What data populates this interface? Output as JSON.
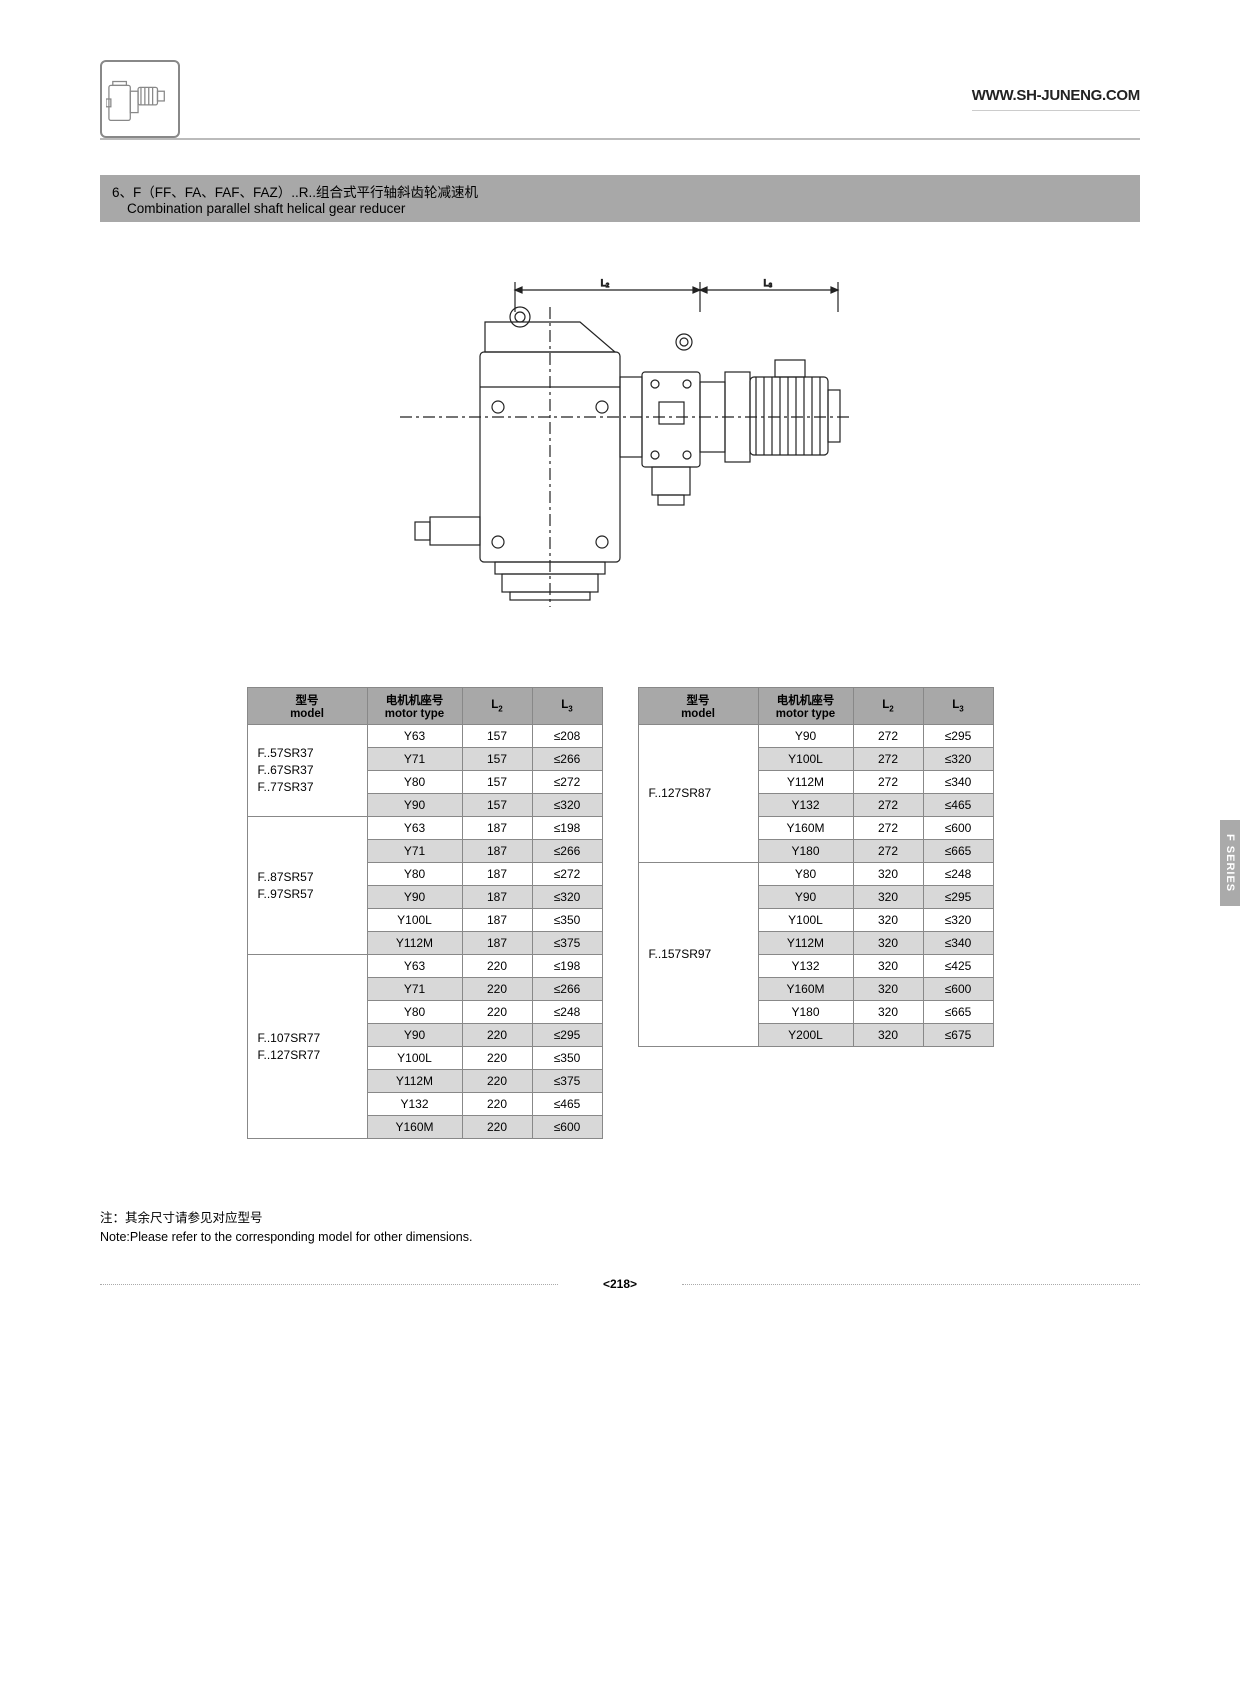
{
  "header": {
    "url": "WWW.SH-JUNENG.COM"
  },
  "title": {
    "cn": "6、F（FF、FA、FAF、FAZ）..R..组合式平行轴斜齿轮减速机",
    "en": "Combination parallel shaft helical gear reducer"
  },
  "diagram": {
    "label_l2": "L₂",
    "label_l3": "L₃"
  },
  "headers": {
    "model_cn": "型号",
    "model_en": "model",
    "motor_cn": "电机机座号",
    "motor_en": "motor type",
    "l2": "L",
    "l2_sub": "2",
    "l3": "L",
    "l3_sub": "3"
  },
  "table_left": [
    {
      "model": "F..57SR37\nF..67SR37\nF..77SR37",
      "rows": [
        {
          "motor": "Y63",
          "l2": "157",
          "l3": "≤208",
          "shade": false
        },
        {
          "motor": "Y71",
          "l2": "157",
          "l3": "≤266",
          "shade": true
        },
        {
          "motor": "Y80",
          "l2": "157",
          "l3": "≤272",
          "shade": false
        },
        {
          "motor": "Y90",
          "l2": "157",
          "l3": "≤320",
          "shade": true
        }
      ]
    },
    {
      "model": "F..87SR57\nF..97SR57",
      "rows": [
        {
          "motor": "Y63",
          "l2": "187",
          "l3": "≤198",
          "shade": false
        },
        {
          "motor": "Y71",
          "l2": "187",
          "l3": "≤266",
          "shade": true
        },
        {
          "motor": "Y80",
          "l2": "187",
          "l3": "≤272",
          "shade": false
        },
        {
          "motor": "Y90",
          "l2": "187",
          "l3": "≤320",
          "shade": true
        },
        {
          "motor": "Y100L",
          "l2": "187",
          "l3": "≤350",
          "shade": false
        },
        {
          "motor": "Y112M",
          "l2": "187",
          "l3": "≤375",
          "shade": true
        }
      ]
    },
    {
      "model": "F..107SR77\nF..127SR77",
      "rows": [
        {
          "motor": "Y63",
          "l2": "220",
          "l3": "≤198",
          "shade": false
        },
        {
          "motor": "Y71",
          "l2": "220",
          "l3": "≤266",
          "shade": true
        },
        {
          "motor": "Y80",
          "l2": "220",
          "l3": "≤248",
          "shade": false
        },
        {
          "motor": "Y90",
          "l2": "220",
          "l3": "≤295",
          "shade": true
        },
        {
          "motor": "Y100L",
          "l2": "220",
          "l3": "≤350",
          "shade": false
        },
        {
          "motor": "Y112M",
          "l2": "220",
          "l3": "≤375",
          "shade": true
        },
        {
          "motor": "Y132",
          "l2": "220",
          "l3": "≤465",
          "shade": false
        },
        {
          "motor": "Y160M",
          "l2": "220",
          "l3": "≤600",
          "shade": true
        }
      ]
    }
  ],
  "table_right": [
    {
      "model": "F..127SR87",
      "rows": [
        {
          "motor": "Y90",
          "l2": "272",
          "l3": "≤295",
          "shade": false
        },
        {
          "motor": "Y100L",
          "l2": "272",
          "l3": "≤320",
          "shade": true
        },
        {
          "motor": "Y112M",
          "l2": "272",
          "l3": "≤340",
          "shade": false
        },
        {
          "motor": "Y132",
          "l2": "272",
          "l3": "≤465",
          "shade": true
        },
        {
          "motor": "Y160M",
          "l2": "272",
          "l3": "≤600",
          "shade": false
        },
        {
          "motor": "Y180",
          "l2": "272",
          "l3": "≤665",
          "shade": true
        }
      ]
    },
    {
      "model": "F..157SR97",
      "rows": [
        {
          "motor": "Y80",
          "l2": "320",
          "l3": "≤248",
          "shade": false
        },
        {
          "motor": "Y90",
          "l2": "320",
          "l3": "≤295",
          "shade": true
        },
        {
          "motor": "Y100L",
          "l2": "320",
          "l3": "≤320",
          "shade": false
        },
        {
          "motor": "Y112M",
          "l2": "320",
          "l3": "≤340",
          "shade": true
        },
        {
          "motor": "Y132",
          "l2": "320",
          "l3": "≤425",
          "shade": false
        },
        {
          "motor": "Y160M",
          "l2": "320",
          "l3": "≤600",
          "shade": true
        },
        {
          "motor": "Y180",
          "l2": "320",
          "l3": "≤665",
          "shade": false
        },
        {
          "motor": "Y200L",
          "l2": "320",
          "l3": "≤675",
          "shade": true
        }
      ]
    }
  ],
  "note": {
    "cn": "注：其余尺寸请参见对应型号",
    "en": "Note:Please refer to the corresponding model for other dimensions."
  },
  "footer": {
    "page": "<218>"
  },
  "side_tab": "F SERIES"
}
